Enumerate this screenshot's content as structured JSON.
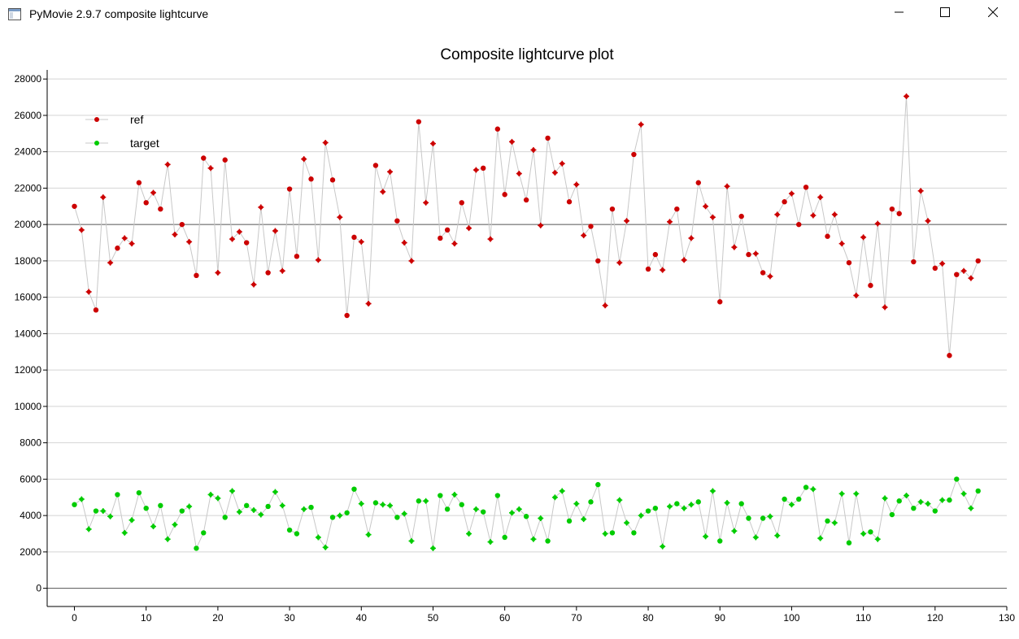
{
  "window": {
    "title": "PyMovie 2.9.7 composite lightcurve",
    "controls": {
      "minimize": "minimize-icon",
      "maximize": "maximize-icon",
      "close": "close-icon"
    }
  },
  "chart_data": {
    "type": "scatter",
    "title": "Composite lightcurve plot",
    "xlabel": "",
    "ylabel": "",
    "xlim": [
      -3.8,
      130
    ],
    "ylim": [
      -1000,
      28500
    ],
    "x_ticks": [
      0,
      10,
      20,
      30,
      40,
      50,
      60,
      70,
      80,
      90,
      100,
      110,
      120,
      130
    ],
    "y_ticks": [
      0,
      2000,
      4000,
      6000,
      8000,
      10000,
      12000,
      14000,
      16000,
      18000,
      20000,
      22000,
      24000,
      26000,
      28000
    ],
    "grid": true,
    "legend_position": "top-left",
    "series": [
      {
        "name": "ref",
        "color": "#cc0000",
        "values": [
          21000,
          19700,
          16300,
          15300,
          21500,
          17900,
          18700,
          19250,
          18950,
          22300,
          21200,
          21750,
          20850,
          23300,
          19450,
          20000,
          19050,
          17200,
          23650,
          23100,
          17350,
          23550,
          19200,
          19600,
          19000,
          16700,
          20950,
          17350,
          19650,
          17450,
          21950,
          18250,
          23600,
          22500,
          18050,
          24500,
          22450,
          20400,
          15000,
          19300,
          19050,
          15650,
          23250,
          21800,
          22900,
          20200,
          19000,
          18000,
          25650,
          21200,
          24450,
          19250,
          19700,
          18950,
          21200,
          19800,
          23000,
          23100,
          19200,
          25250,
          21650,
          24550,
          22800,
          21350,
          24100,
          19950,
          24750,
          22850,
          23350,
          21250,
          22200,
          19400,
          19900,
          18000,
          15550,
          20850,
          17900,
          20200,
          23850,
          25500,
          17550,
          18350,
          17500,
          20150,
          20850,
          18050,
          19250,
          22300,
          21000,
          20400,
          15750,
          22100,
          18750,
          20450,
          18350,
          18400,
          17350,
          17150,
          20550,
          21250,
          21700,
          20000,
          22050,
          20500,
          21500,
          19350,
          20550,
          18950,
          17900,
          16100,
          19300,
          16650,
          20050,
          15450,
          20850,
          20600,
          27050,
          17950,
          21850,
          20200,
          17600,
          17850,
          12800,
          17250,
          17450,
          17050,
          18000
        ]
      },
      {
        "name": "target",
        "color": "#00cc00",
        "values": [
          4600,
          4900,
          3250,
          4250,
          4250,
          3950,
          5150,
          3050,
          3750,
          5250,
          4400,
          3400,
          4550,
          2700,
          3500,
          4250,
          4500,
          2200,
          3050,
          5150,
          4950,
          3900,
          5350,
          4200,
          4550,
          4300,
          4050,
          4500,
          5300,
          4550,
          3200,
          3000,
          4350,
          4450,
          2800,
          2250,
          3900,
          4000,
          4150,
          5450,
          4650,
          2950,
          4700,
          4600,
          4550,
          3900,
          4100,
          2600,
          4800,
          4800,
          2200,
          5100,
          4350,
          5150,
          4600,
          3000,
          4350,
          4200,
          2550,
          5100,
          2800,
          4150,
          4350,
          3950,
          2700,
          3850,
          2600,
          5000,
          5350,
          3700,
          4650,
          3800,
          4750,
          5700,
          3000,
          3050,
          4850,
          3600,
          3050,
          4000,
          4250,
          4400,
          2300,
          4500,
          4650,
          4400,
          4600,
          4750,
          2850,
          5350,
          2600,
          4700,
          3150,
          4650,
          3850,
          2800,
          3850,
          3950,
          2900,
          4900,
          4600,
          4900,
          5550,
          5450,
          2750,
          3700,
          3600,
          5200,
          2500,
          5200,
          3000,
          3100,
          2700,
          4950,
          4050,
          4800,
          5100,
          4400,
          4750,
          4650,
          4250,
          4850,
          4850,
          6000,
          5200,
          4400,
          5350
        ]
      }
    ],
    "connector_color": "#c8c8c8",
    "highlight_lines": [
      0,
      20000
    ]
  }
}
